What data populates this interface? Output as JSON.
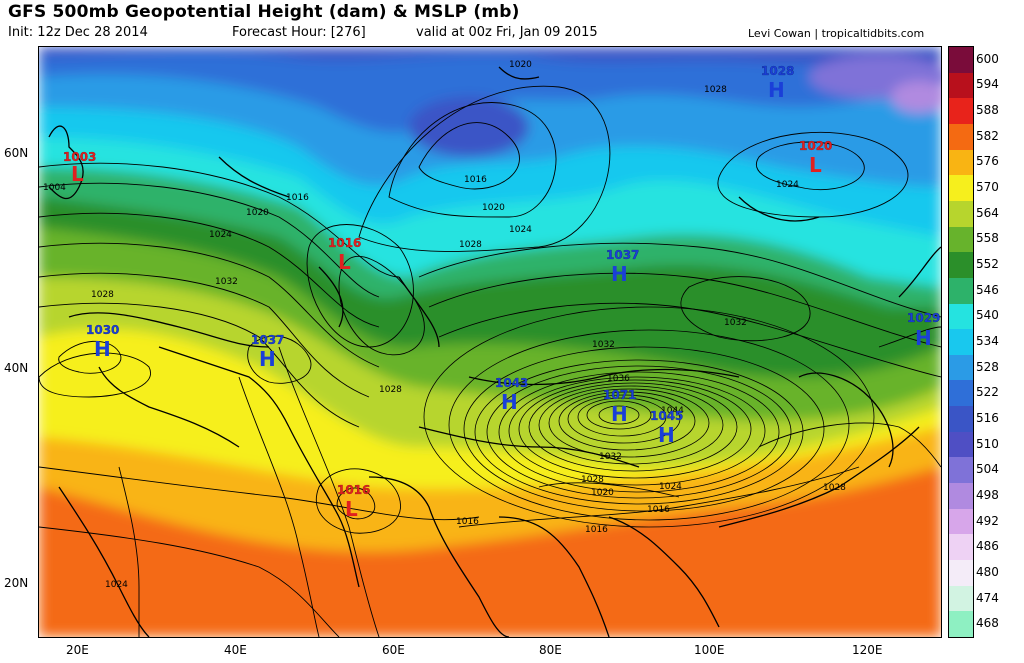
{
  "title": "GFS 500mb Geopotential Height (dam) & MSLP (mb)",
  "init": "Init: 12z Dec 28 2014",
  "forecast_hour": "Forecast Hour: [276]",
  "valid": "valid at 00z Fri, Jan 09 2015",
  "credit": "Levi Cowan | tropicaltidbits.com",
  "lat_labels": [
    "60N",
    "40N",
    "20N"
  ],
  "lon_labels": [
    "20E",
    "40E",
    "60E",
    "80E",
    "100E",
    "120E"
  ],
  "colorbar": {
    "values": [
      "600",
      "594",
      "588",
      "582",
      "576",
      "570",
      "564",
      "558",
      "552",
      "546",
      "540",
      "534",
      "528",
      "522",
      "516",
      "510",
      "504",
      "498",
      "492",
      "486",
      "480",
      "474",
      "468"
    ],
    "colors": [
      "#7a0c3a",
      "#b8101c",
      "#e8231b",
      "#f46a12",
      "#f9b413",
      "#f6ef1d",
      "#b7d52d",
      "#67b32c",
      "#2b8f2a",
      "#2db26a",
      "#25e3e0",
      "#19c8ee",
      "#2b9be6",
      "#2f6fd8",
      "#3a55c6",
      "#4f4fc4",
      "#7f72d8",
      "#b08ae0",
      "#d7a6ea",
      "#eed2f4",
      "#f4ecf8",
      "#d2f3e2",
      "#8ef0c2"
    ]
  },
  "pressure_centers": [
    {
      "type": "L",
      "value": "1003",
      "color": "#e02020"
    },
    {
      "type": "L",
      "value": "1016",
      "color": "#e02020"
    },
    {
      "type": "L",
      "value": "1016",
      "color": "#e02020"
    },
    {
      "type": "L",
      "value": "1020",
      "color": "#e02020"
    },
    {
      "type": "H",
      "value": "1028",
      "color": "#1a3fd8"
    },
    {
      "type": "H",
      "value": "1037",
      "color": "#1a3fd8"
    },
    {
      "type": "H",
      "value": "1030",
      "color": "#1a3fd8"
    },
    {
      "type": "H",
      "value": "1037",
      "color": "#1a3fd8"
    },
    {
      "type": "H",
      "value": "1043",
      "color": "#1a3fd8"
    },
    {
      "type": "H",
      "value": "1071",
      "color": "#1a3fd8"
    },
    {
      "type": "H",
      "value": "1045",
      "color": "#1a3fd8"
    },
    {
      "type": "H",
      "value": "1029",
      "color": "#1a3fd8"
    }
  ],
  "isobar_labels": [
    "1020",
    "1028",
    "1016",
    "1020",
    "1024",
    "1028",
    "1016",
    "1020",
    "1024",
    "1004",
    "1032",
    "1028",
    "1032",
    "1028",
    "1032",
    "1036",
    "1044",
    "1032",
    "1028",
    "1020",
    "1024",
    "1016",
    "1016",
    "1016",
    "1028",
    "1024",
    "1024"
  ]
}
